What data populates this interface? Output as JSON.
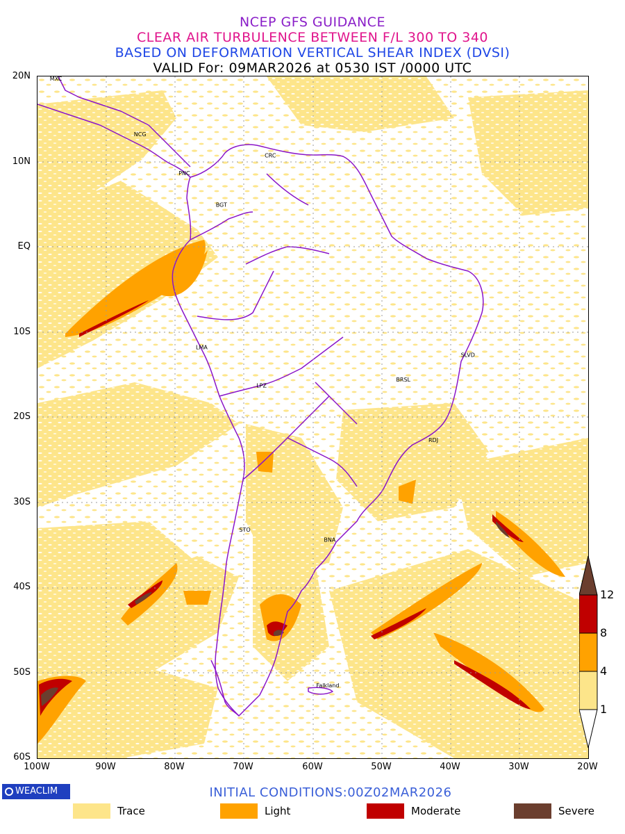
{
  "titles": {
    "line1": "NCEP GFS GUIDANCE",
    "line2": "CLEAR AIR TURBULENCE BETWEEN F/L 300 TO 340",
    "line3": "BASED ON DEFORMATION VERTICAL SHEAR INDEX (DVSI)",
    "line4": "VALID For: 09MAR2026 at 0530 IST /0000 UTC"
  },
  "axes": {
    "lat_labels": [
      "20N",
      "10N",
      "EQ",
      "10S",
      "20S",
      "30S",
      "40S",
      "50S",
      "60S"
    ],
    "lon_labels": [
      "100W",
      "90W",
      "80W",
      "70W",
      "60W",
      "50W",
      "40W",
      "30W",
      "20W"
    ],
    "lat_range": [
      -60,
      20
    ],
    "lon_range": [
      -100,
      -20
    ],
    "gridlines": "dotted"
  },
  "colorbar": {
    "levels": [
      "1",
      "4",
      "8",
      "12"
    ],
    "colors": [
      "#ffffff",
      "#fde58a",
      "#ffa200",
      "#c00000",
      "#6b3e2e"
    ]
  },
  "stations": [
    {
      "code": "MXC",
      "lon": -98.2,
      "lat": 19.5
    },
    {
      "code": "NCG",
      "lon": -86.0,
      "lat": 13.0
    },
    {
      "code": "CRC",
      "lon": -67.0,
      "lat": 10.5
    },
    {
      "code": "PNC",
      "lon": -79.5,
      "lat": 8.4
    },
    {
      "code": "BGT",
      "lon": -74.1,
      "lat": 4.7
    },
    {
      "code": "LMA",
      "lon": -77.0,
      "lat": -12.0
    },
    {
      "code": "LPZ",
      "lon": -68.2,
      "lat": -16.5
    },
    {
      "code": "SLVD",
      "lon": -38.5,
      "lat": -12.9
    },
    {
      "code": "BRSL",
      "lon": -47.9,
      "lat": -15.8
    },
    {
      "code": "RDJ",
      "lon": -43.2,
      "lat": -22.9
    },
    {
      "code": "STO",
      "lon": -70.7,
      "lat": -33.4
    },
    {
      "code": "BNA",
      "lon": -58.4,
      "lat": -34.6
    },
    {
      "code": "Falkland",
      "lon": -59.5,
      "lat": -51.7
    }
  ],
  "footer": {
    "logo": "WEACLIM",
    "initial_conditions": "INITIAL CONDITIONS:00Z02MAR2026"
  },
  "legend": [
    {
      "label": "Trace",
      "color": "#fde58a"
    },
    {
      "label": "Light",
      "color": "#ffa200"
    },
    {
      "label": "Moderate",
      "color": "#c00000"
    },
    {
      "label": "Severe",
      "color": "#6b3e2e"
    }
  ]
}
